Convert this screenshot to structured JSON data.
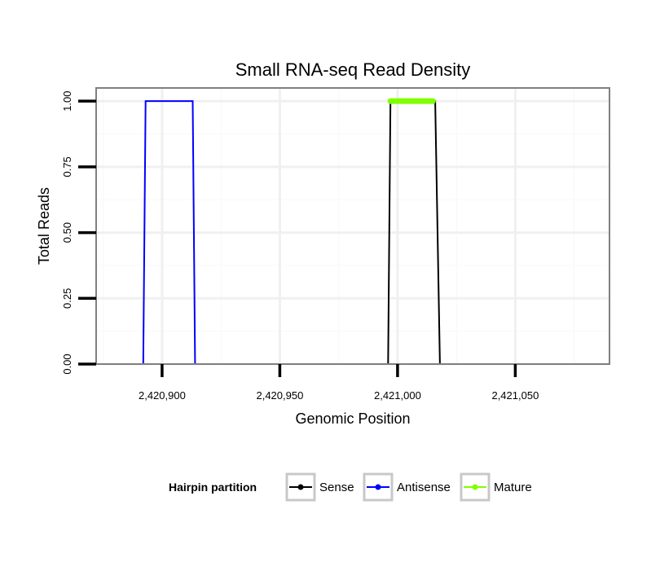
{
  "chart_data": {
    "type": "line",
    "title": "Small RNA-seq Read Density",
    "xlabel": "Genomic Position",
    "ylabel": "Total Reads",
    "xlim": [
      2420872,
      2421090
    ],
    "ylim": [
      0,
      1.05
    ],
    "x_ticks": [
      2420900,
      2420950,
      2421000,
      2421050
    ],
    "x_tick_labels": [
      "2,420,900",
      "2,420,950",
      "2,421,000",
      "2,421,050"
    ],
    "y_ticks": [
      0,
      0.25,
      0.5,
      0.75,
      1.0
    ],
    "y_tick_labels": [
      "0.00",
      "0.25",
      "0.50",
      "0.75",
      "1.00"
    ],
    "grid": true,
    "legend_title": "Hairpin partition",
    "legend_position": "bottom",
    "series": [
      {
        "name": "Sense",
        "color": "#000000",
        "x": [
          2420882,
          2420996,
          2420997,
          2421016,
          2421018,
          2421089
        ],
        "y": [
          0,
          0,
          1,
          1,
          0,
          0
        ]
      },
      {
        "name": "Antisense",
        "color": "#0000ff",
        "x": [
          2420892,
          2420893,
          2420913,
          2420914,
          2420996,
          2421018
        ],
        "y": [
          0,
          1,
          1,
          0,
          0,
          0
        ]
      },
      {
        "name": "Mature",
        "color": "#7fff00",
        "x": [
          2420997,
          2421015
        ],
        "y": [
          1,
          1
        ]
      }
    ]
  }
}
